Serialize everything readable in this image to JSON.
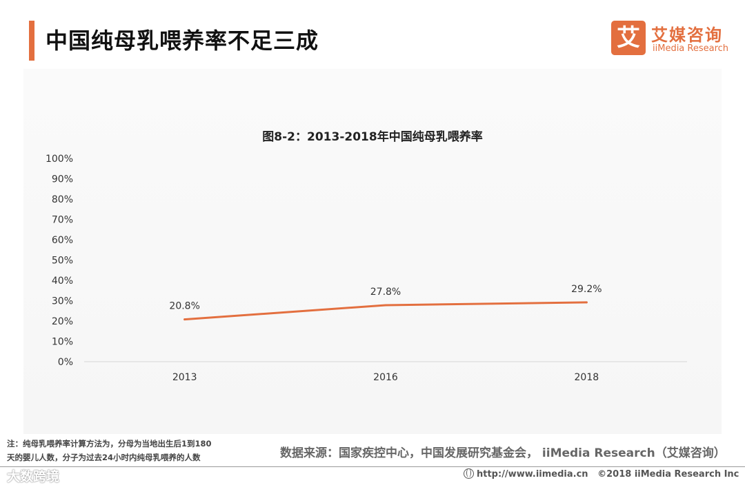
{
  "header": {
    "title": "中国纯母乳喂养率不足三成",
    "accent_color": "#e36f3f"
  },
  "logo": {
    "mark": "艾",
    "cn": "艾媒咨询",
    "en": "iiMedia Research",
    "color": "#e36f3f"
  },
  "chart_data": {
    "type": "line",
    "title": "图8-2：2013-2018年中国纯母乳喂养率",
    "categories": [
      "2013",
      "2016",
      "2018"
    ],
    "series": [
      {
        "values": [
          20.8,
          27.8,
          29.2
        ],
        "color": "#e36f3f"
      }
    ],
    "data_labels": [
      "20.8%",
      "27.8%",
      "29.2%"
    ],
    "y_ticks": [
      "0%",
      "10%",
      "20%",
      "30%",
      "40%",
      "50%",
      "60%",
      "70%",
      "80%",
      "90%",
      "100%"
    ],
    "ylim": [
      0,
      100
    ],
    "xlabel": "",
    "ylabel": "",
    "grid": false,
    "legend": "none"
  },
  "notes": {
    "line1": "注：纯母乳喂养率计算方法为，分母为当地出生后1到180",
    "line2": "天的婴儿人数，分子为过去24小时内纯母乳喂养的人数"
  },
  "source": "数据来源：国家疾控中心，中国发展研究基金会， iiMedia Research（艾媒咨询）",
  "footer": {
    "url": "http://www.iimedia.cn",
    "copyright": "©2018  iiMedia Research  Inc"
  },
  "watermark": "大数跨境"
}
